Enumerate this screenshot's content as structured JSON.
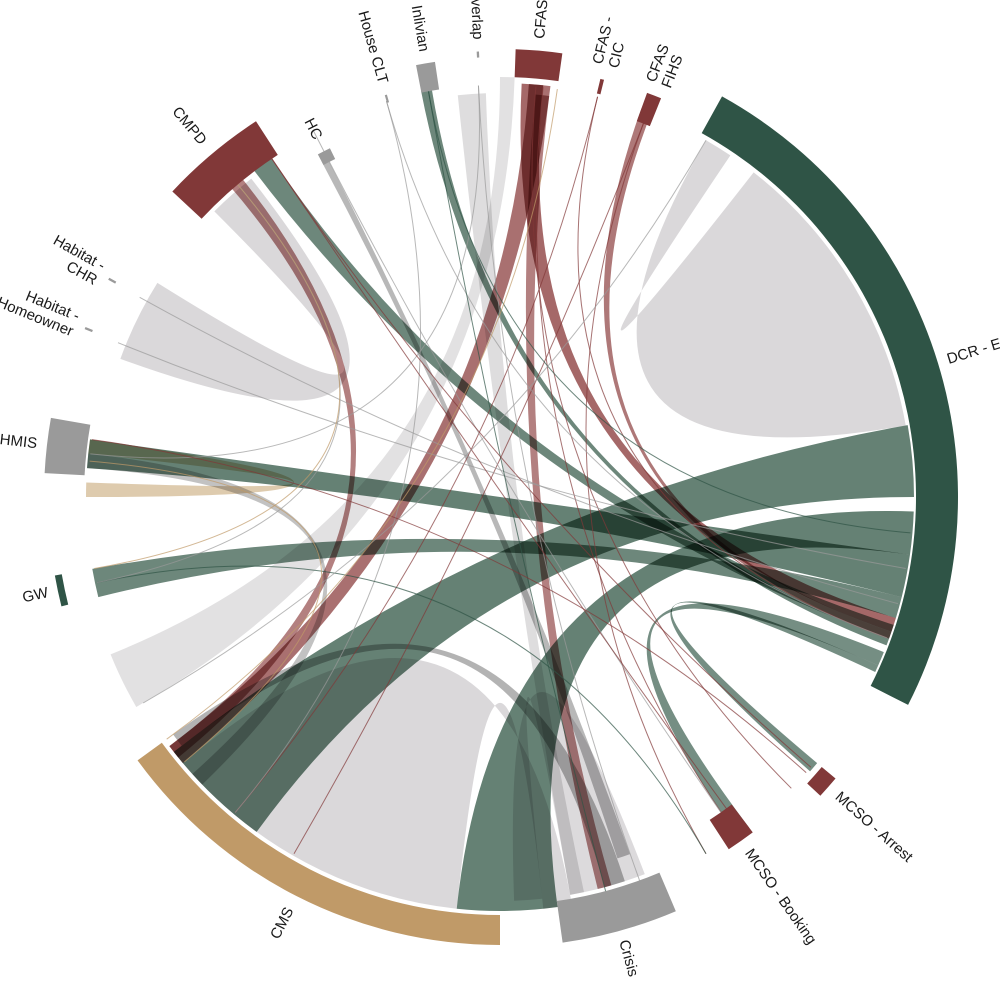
{
  "colors": {
    "green": "#2f5446",
    "green_ribbon": "#5d7a6d",
    "maroon": "#813838",
    "maroon_ribbon": "#a06060",
    "gray": "#9a9a9a",
    "light_gray": "#d6d4d6",
    "tan": "#c09a68",
    "tan_ribbon": "#c8a878"
  },
  "chart_data": {
    "type": "chord",
    "segments": [
      {
        "id": "dcr",
        "label": "DCR - ES",
        "color": "green"
      },
      {
        "id": "mcso_arrest",
        "label": "MCSO - Arrest",
        "color": "maroon"
      },
      {
        "id": "mcso_booking",
        "label": "MCSO - Booking",
        "color": "maroon"
      },
      {
        "id": "crisis",
        "label": "Crisis",
        "color": "gray"
      },
      {
        "id": "cms",
        "label": "CMS",
        "color": "tan"
      },
      {
        "id": "gw",
        "label": "GW",
        "color": "green"
      },
      {
        "id": "hmis",
        "label": "HMIS",
        "color": "gray"
      },
      {
        "id": "habitat_home",
        "label": [
          "Habitat -",
          "Homeowner"
        ],
        "color": "gray"
      },
      {
        "id": "habitat_chr",
        "label": [
          "Habitat -",
          "CHR"
        ],
        "color": "gray"
      },
      {
        "id": "cmpd",
        "label": "CMPD",
        "color": "maroon"
      },
      {
        "id": "hc",
        "label": "HC",
        "color": "gray"
      },
      {
        "id": "house_clt",
        "label": "House CLT",
        "color": "gray"
      },
      {
        "id": "inlivian",
        "label": "Inlivian",
        "color": "gray"
      },
      {
        "id": "no_overlap",
        "label": "No Overlap",
        "color": "gray"
      },
      {
        "id": "cfas_ani",
        "label": "CFAS - ANI",
        "color": "maroon"
      },
      {
        "id": "cfas_cic",
        "label": [
          "CFAS -",
          "CIC"
        ],
        "color": "maroon"
      },
      {
        "id": "cfas_fihs",
        "label": [
          "CFAS",
          "FIHS"
        ],
        "color": "maroon"
      }
    ]
  }
}
